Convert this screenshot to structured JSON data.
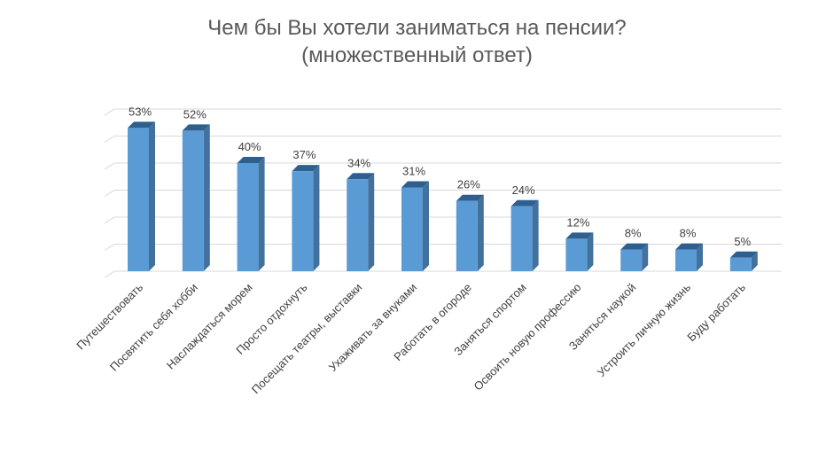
{
  "chart_data": {
    "type": "bar",
    "title": "Чем бы Вы хотели заниматься на пенсии?",
    "subtitle": "(множественный ответ)",
    "categories": [
      "Путешествовать",
      "Посвятить себя хобби",
      "Наслаждаться морем",
      "Просто отдохнуть",
      "Посещать театры, выставки",
      "Ухаживать за внуками",
      "Работать в огороде",
      "Заняться спортом",
      "Освоить новую профессию",
      "Заняться наукой",
      "Устроить личную жизнь",
      "Буду работать"
    ],
    "values": [
      53,
      52,
      40,
      37,
      34,
      31,
      26,
      24,
      12,
      8,
      8,
      5
    ],
    "data_labels": [
      "53%",
      "52%",
      "40%",
      "37%",
      "34%",
      "31%",
      "26%",
      "24%",
      "12%",
      "8%",
      "8%",
      "5%"
    ],
    "ylim": [
      0,
      60
    ],
    "grid": true,
    "legend": "none",
    "style": "3d-columns",
    "colors": {
      "bar_front": "#5b9bd5",
      "bar_side": "#41719c",
      "bar_top": "#2e5f8f"
    }
  }
}
